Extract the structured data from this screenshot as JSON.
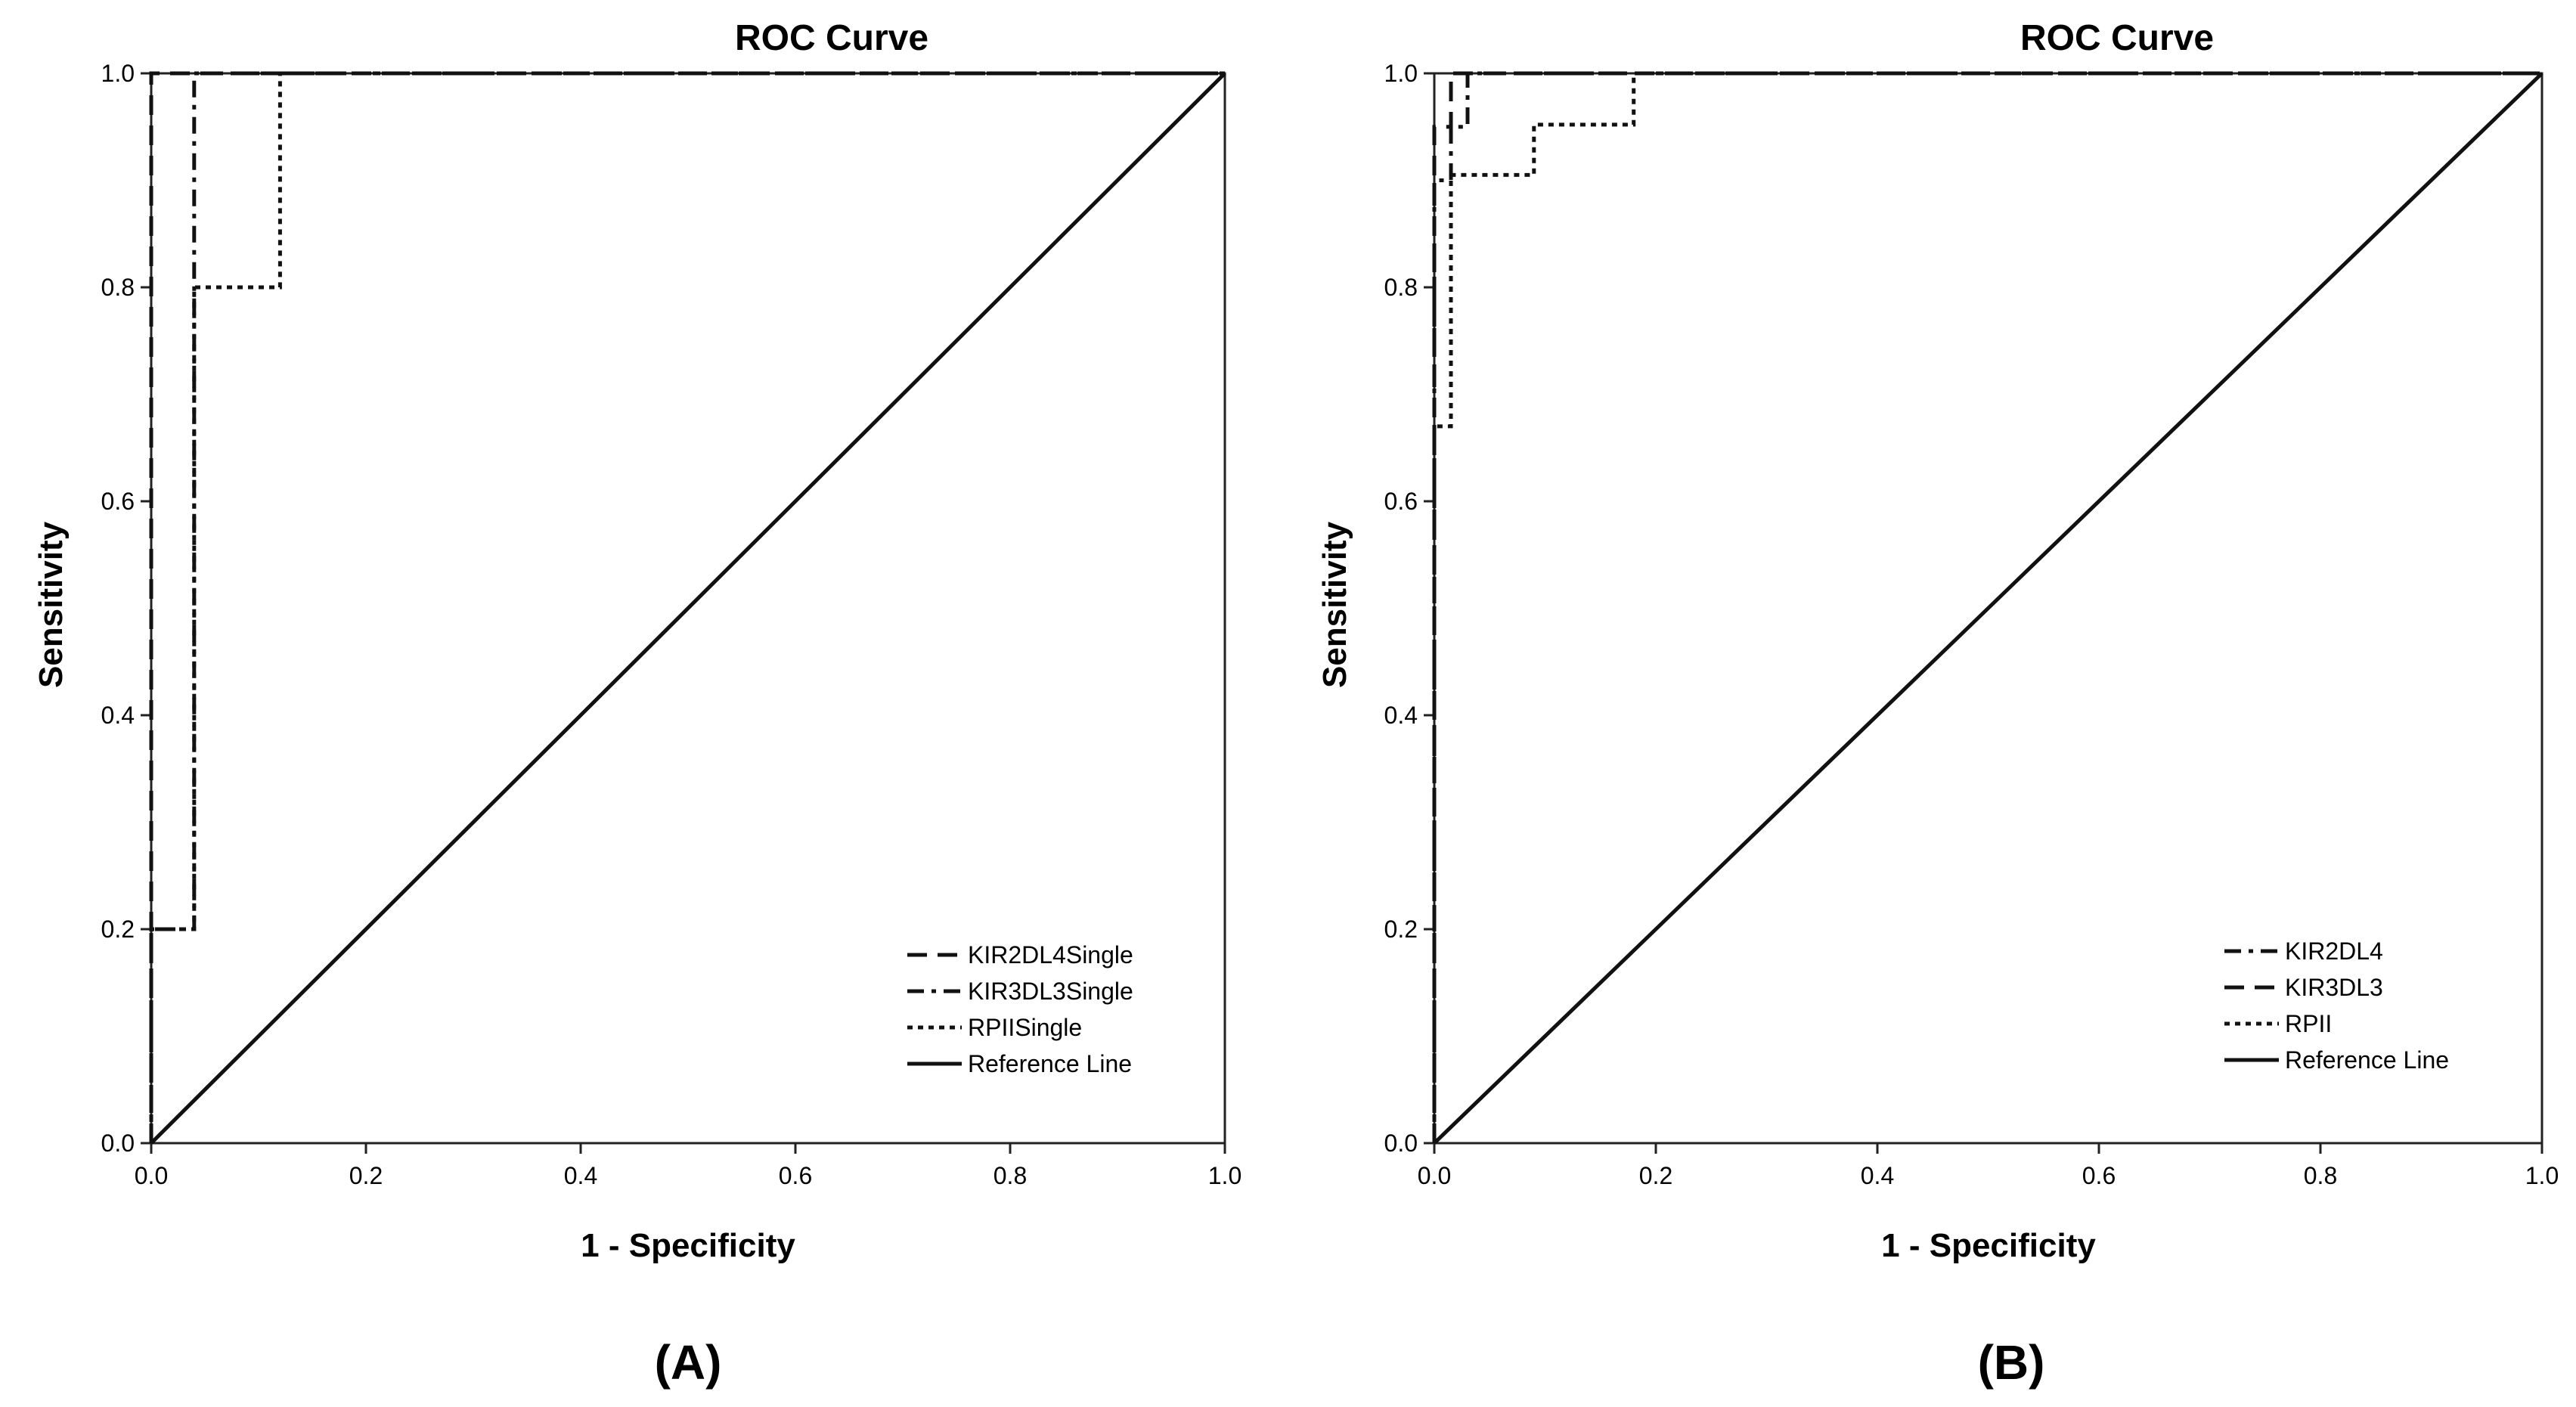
{
  "chart_data": [
    {
      "type": "line",
      "panel_label": "(A)",
      "title": "ROC Curve",
      "xlabel": "1 - Specificity",
      "ylabel": "Sensitivity",
      "xlim": [
        0.0,
        1.0
      ],
      "ylim": [
        0.0,
        1.0
      ],
      "xticks": [
        "0.0",
        "0.2",
        "0.4",
        "0.6",
        "0.8",
        "1.0"
      ],
      "yticks": [
        "0.0",
        "0.2",
        "0.4",
        "0.6",
        "0.8",
        "1.0"
      ],
      "legend_position": "bottom-right",
      "series": [
        {
          "name": "KIR2DL4Single",
          "style": "long-dash",
          "x": [
            0,
            0,
            0,
            1
          ],
          "y": [
            0,
            0.6,
            1.0,
            1.0
          ]
        },
        {
          "name": "KIR3DL3Single",
          "style": "dash-dot",
          "x": [
            0,
            0,
            0.04,
            0.04,
            0.04,
            1
          ],
          "y": [
            0,
            0.2,
            0.2,
            0.6,
            1.0,
            1.0
          ]
        },
        {
          "name": "RPIISingle",
          "style": "dotted",
          "x": [
            0,
            0,
            0.04,
            0.04,
            0.12,
            0.12,
            1
          ],
          "y": [
            0,
            0.2,
            0.2,
            0.8,
            0.8,
            1.0,
            1.0
          ]
        },
        {
          "name": "Reference Line",
          "style": "solid",
          "x": [
            0,
            1
          ],
          "y": [
            0,
            1
          ]
        }
      ]
    },
    {
      "type": "line",
      "panel_label": "(B)",
      "title": "ROC Curve",
      "xlabel": "1 - Specificity",
      "ylabel": "Sensitivity",
      "xlim": [
        0.0,
        1.0
      ],
      "ylim": [
        0.0,
        1.0
      ],
      "xticks": [
        "0.0",
        "0.2",
        "0.4",
        "0.6",
        "0.8",
        "1.0"
      ],
      "yticks": [
        "0.0",
        "0.2",
        "0.4",
        "0.6",
        "0.8",
        "1.0"
      ],
      "legend_position": "bottom-right",
      "series": [
        {
          "name": "KIR2DL4",
          "style": "dash-dot",
          "x": [
            0,
            0,
            0.015,
            0.015,
            0.03,
            0.03,
            1
          ],
          "y": [
            0,
            0.9,
            0.9,
            0.95,
            0.95,
            1.0,
            1.0
          ]
        },
        {
          "name": "KIR3DL3",
          "style": "long-dash",
          "x": [
            0,
            0,
            0.015,
            0.015,
            1
          ],
          "y": [
            0,
            0.95,
            0.95,
            1.0,
            1.0
          ]
        },
        {
          "name": "RPII",
          "style": "dotted",
          "x": [
            0,
            0,
            0.015,
            0.015,
            0.09,
            0.09,
            0.18,
            0.18,
            1
          ],
          "y": [
            0,
            0.67,
            0.67,
            0.905,
            0.905,
            0.952,
            0.952,
            1.0,
            1.0
          ]
        },
        {
          "name": "Reference Line",
          "style": "solid",
          "x": [
            0,
            1
          ],
          "y": [
            0,
            1
          ]
        }
      ]
    }
  ]
}
